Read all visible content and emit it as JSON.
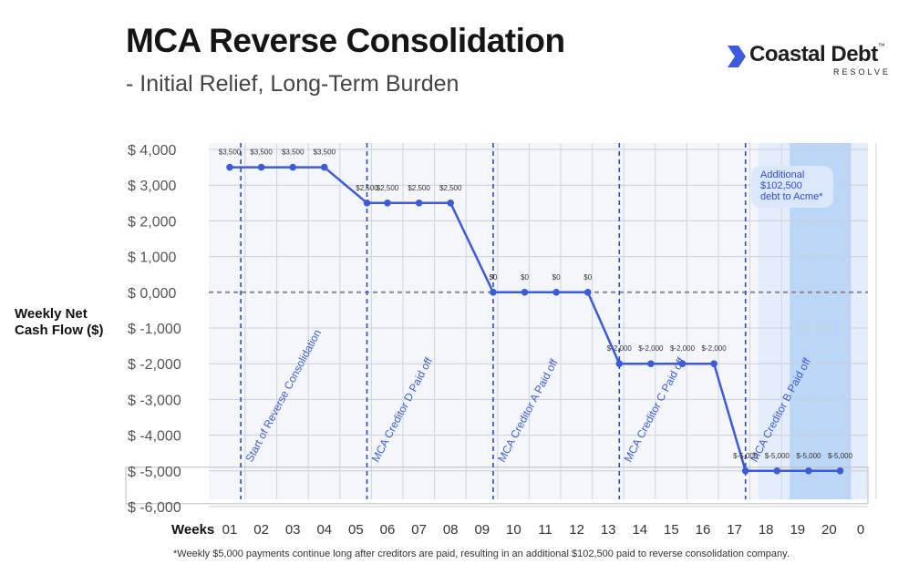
{
  "header": {
    "title": "MCA Reverse Consolidation",
    "subtitle": "- Initial Relief, Long-Term Burden"
  },
  "logo": {
    "name": "Coastal Debt",
    "tm": "™",
    "sub": "RESOLVE",
    "accent_color": "#3b5bdb"
  },
  "footnote": "*Weekly $5,000 payments continue long after creditors are paid, resulting in an additional $102,500 paid to reverse consolidation company.",
  "chart_data": {
    "type": "line",
    "ylabel": "Weekly Net Cash Flow ($)",
    "xlabel": "Weeks",
    "x_ticks": [
      "01",
      "02",
      "03",
      "04",
      "05",
      "06",
      "07",
      "08",
      "09",
      "10",
      "11",
      "12",
      "13",
      "14",
      "15",
      "16",
      "17",
      "18",
      "19",
      "20",
      "0"
    ],
    "y_ticks": [
      {
        "value": 4000,
        "label": "$ 4,000"
      },
      {
        "value": 3000,
        "label": "$ 3,000"
      },
      {
        "value": 2000,
        "label": "$ 2,000"
      },
      {
        "value": 1000,
        "label": "$ 1,000"
      },
      {
        "value": 0,
        "label": "$ 0,000"
      },
      {
        "value": -1000,
        "label": "$ -1,000"
      },
      {
        "value": -2000,
        "label": "$ -2,000"
      },
      {
        "value": -3000,
        "label": "$ -3,000"
      },
      {
        "value": -4000,
        "label": "$ -4,000"
      },
      {
        "value": -5000,
        "label": "$ -5,000"
      },
      {
        "value": -6000,
        "label": "$ -6,000"
      }
    ],
    "ylim": [
      -6000,
      4000
    ],
    "xlim": [
      1,
      21
    ],
    "grid": true,
    "line_color": "#3b5bdb",
    "highlight_color": "#bcd6f7",
    "highlight_range": [
      17.75,
      20.5
    ],
    "zero_line_style": "dashed",
    "points": [
      {
        "x": 1,
        "y": 3500,
        "label": "$3,500"
      },
      {
        "x": 2,
        "y": 3500,
        "label": "$3,500"
      },
      {
        "x": 3,
        "y": 3500,
        "label": "$3,500"
      },
      {
        "x": 4,
        "y": 3500,
        "label": "$3,500"
      },
      {
        "x": 5.35,
        "y": 2500,
        "label": "$2,500"
      },
      {
        "x": 6,
        "y": 2500,
        "label": "$2,500"
      },
      {
        "x": 7,
        "y": 2500,
        "label": "$2,500"
      },
      {
        "x": 8,
        "y": 2500,
        "label": "$2,500"
      },
      {
        "x": 9.35,
        "y": 0,
        "label": "$0"
      },
      {
        "x": 10.35,
        "y": 0,
        "label": "$0"
      },
      {
        "x": 11.35,
        "y": 0,
        "label": "$0"
      },
      {
        "x": 12.35,
        "y": 0,
        "label": "$0"
      },
      {
        "x": 13.35,
        "y": -2000,
        "label": "$-2,000"
      },
      {
        "x": 14.35,
        "y": -2000,
        "label": "$-2,000"
      },
      {
        "x": 15.35,
        "y": -2000,
        "label": "$-2,000"
      },
      {
        "x": 16.35,
        "y": -2000,
        "label": "$-2,000"
      },
      {
        "x": 17.35,
        "y": -5000,
        "label": "$-5,000"
      },
      {
        "x": 18.35,
        "y": -5000,
        "label": "$-5,000"
      },
      {
        "x": 19.35,
        "y": -5000,
        "label": "$-5,000"
      },
      {
        "x": 20.35,
        "y": -5000,
        "label": "$-5,000"
      }
    ],
    "line_path_x_start": 1,
    "line_path_x_end": 20.35,
    "events": [
      {
        "x": 1.35,
        "label": "Start of Reverse Consolidation"
      },
      {
        "x": 5.35,
        "label": "MCA Creditor D Paid off"
      },
      {
        "x": 9.35,
        "label": "MCA Creditor A Paid off"
      },
      {
        "x": 13.35,
        "label": "MCA Creditor C Paid off"
      },
      {
        "x": 17.35,
        "label": "MCA Creditor B Paid off"
      }
    ],
    "annotation": {
      "lines": [
        "Additional",
        "$102,500",
        "debt to Acme*"
      ]
    }
  }
}
